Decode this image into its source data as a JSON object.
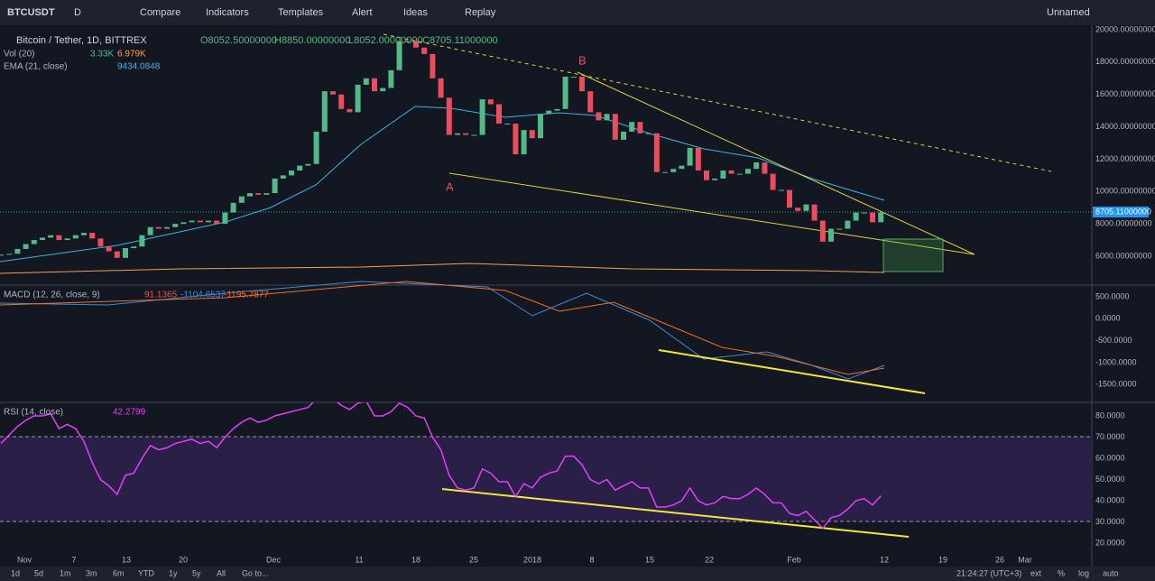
{
  "toolbar": {
    "symbol": "BTCUSDT",
    "interval": "D",
    "items": [
      "Compare",
      "Indicators",
      "Templates",
      "Alert",
      "Ideas",
      "Replay"
    ],
    "layout": "Unnamed"
  },
  "legend": {
    "title": "Bitcoin / Tether, 1D, BITTREX",
    "ohlc": [
      "O8052.50000000",
      "H8850.00000000",
      "L8052.00000000",
      "C8705.11000000"
    ],
    "vol": "Vol (20)",
    "vol_values": [
      "3.33K",
      "6.979K"
    ],
    "ema": "EMA (21, close)",
    "ema_value": "9434.0848",
    "macd": "MACD (12, 26, close, 9)",
    "macd_values": [
      "91.1365",
      "-1104.6537",
      "-1195.7877"
    ],
    "rsi": "RSI (14, close)",
    "rsi_value": "42.2799"
  },
  "annotations": [
    "A",
    "B"
  ],
  "price_axis": [
    "20000.00000000",
    "18000.00000000",
    "16000.00000000",
    "14000.00000000",
    "12000.00000000",
    "10000.00000000",
    "8000.00000000",
    "6000.00000000"
  ],
  "last_price": "8705.11000000",
  "macd_axis": [
    "500.0000",
    "0.0000",
    "-500.0000",
    "-1000.0000",
    "-1500.0000"
  ],
  "rsi_axis": [
    "80.0000",
    "70.0000",
    "60.0000",
    "50.0000",
    "40.0000",
    "30.0000",
    "20.0000"
  ],
  "date_axis": [
    "Nov",
    "7",
    "13",
    "20",
    "Dec",
    "11",
    "18",
    "25",
    "2018",
    "8",
    "15",
    "22",
    "Feb",
    "12",
    "19",
    "26",
    "Mar"
  ],
  "bottom_bar": {
    "ranges": [
      "1d",
      "5d",
      "1m",
      "3m",
      "6m",
      "YTD",
      "1y",
      "5y",
      "All",
      "Go to..."
    ],
    "status": [
      "21:24:27 (UTC+3)",
      "ext",
      "%",
      "log",
      "auto"
    ]
  },
  "series": {
    "close": [
      6100,
      6150,
      6450,
      6750,
      7000,
      7150,
      7300,
      7000,
      7100,
      7300,
      7450,
      7100,
      6600,
      6300,
      5900,
      6500,
      6600,
      7300,
      7800,
      7700,
      7800,
      8000,
      8100,
      8200,
      8100,
      8200,
      8000,
      8700,
      9300,
      9700,
      9900,
      9800,
      9900,
      10800,
      11000,
      11300,
      11600,
      11700,
      13700,
      16200,
      16000,
      15100,
      14900,
      16600,
      17000,
      16200,
      16400,
      17500,
      19300,
      19300,
      18900,
      18500,
      17000,
      15800,
      13500,
      13600,
      13500,
      13500,
      15700,
      15400,
      14200,
      14200,
      12300,
      13800,
      13300,
      14800,
      15000,
      15100,
      17100,
      17100,
      16200,
      14900,
      14400,
      14800,
      13200,
      13700,
      14300,
      13600,
      13600,
      11200,
      11200,
      11400,
      11600,
      12700,
      11300,
      10700,
      10800,
      11300,
      11100,
      11100,
      11400,
      11800,
      11100,
      10100,
      10100,
      9000,
      8800,
      9200,
      8200,
      6900,
      7700,
      7700,
      8200,
      8700,
      8700,
      8100,
      8705.11
    ],
    "rsi": [
      67,
      71,
      75,
      78,
      80,
      80,
      81,
      74,
      76,
      74,
      68,
      58,
      50,
      47,
      43,
      52,
      53,
      60,
      66,
      64,
      65,
      67,
      68,
      69,
      67,
      68,
      65,
      70,
      74,
      77,
      79,
      77,
      78,
      80,
      81,
      82,
      83,
      84,
      88,
      90,
      88,
      85,
      83,
      86,
      87,
      80,
      80,
      82,
      86,
      84,
      80,
      79,
      70,
      64,
      52,
      46,
      45,
      46,
      55,
      53,
      49,
      49,
      42,
      48,
      46,
      51,
      53,
      54,
      61,
      61,
      57,
      50,
      48,
      50,
      45,
      47,
      49,
      46,
      46,
      37,
      37,
      38,
      40,
      46,
      40,
      38,
      39,
      42,
      41,
      41,
      43,
      46,
      43,
      39,
      39,
      34,
      33,
      35,
      31,
      27,
      32,
      33,
      36,
      40,
      41,
      38,
      42.28
    ]
  }
}
